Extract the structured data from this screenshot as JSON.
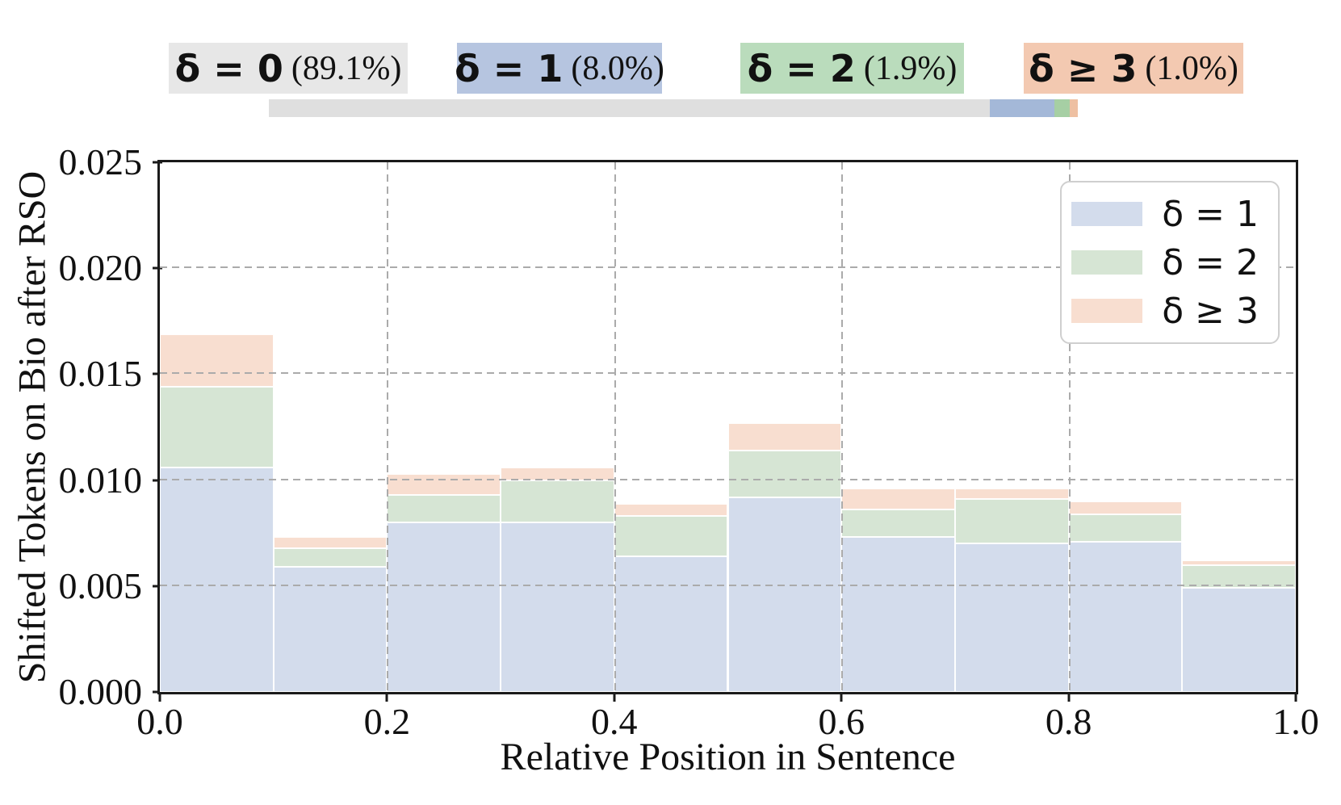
{
  "banner": {
    "items": [
      {
        "delta": "δ = 0",
        "pct": "(89.1%)",
        "share": 89.1,
        "chip_color": "#e7e7e7",
        "bar_color": "#dfdfdf"
      },
      {
        "delta": "δ = 1",
        "pct": "(8.0%)",
        "share": 8.0,
        "chip_color": "#b6c5e0",
        "bar_color": "#a4b8d8"
      },
      {
        "delta": "δ = 2",
        "pct": "(1.9%)",
        "share": 1.9,
        "chip_color": "#badcbc",
        "bar_color": "#a6cfa4"
      },
      {
        "delta": "δ ≥ 3",
        "pct": "(1.0%)",
        "share": 1.0,
        "chip_color": "#f3c9b1",
        "bar_color": "#eec0a2"
      }
    ]
  },
  "chart_data": {
    "type": "bar",
    "stacked": true,
    "title": "",
    "xlabel": "Relative Position in Sentence",
    "ylabel": "Shifted Tokens on Bio after RSO",
    "xlim": [
      0.0,
      1.0
    ],
    "ylim": [
      0.0,
      0.025
    ],
    "x_ticks": [
      "0.0",
      "0.2",
      "0.4",
      "0.6",
      "0.8",
      "1.0"
    ],
    "y_ticks": [
      "0.000",
      "0.005",
      "0.010",
      "0.015",
      "0.020",
      "0.025"
    ],
    "grid": true,
    "bin_edges": [
      0.0,
      0.1,
      0.2,
      0.3,
      0.4,
      0.5,
      0.6,
      0.7,
      0.8,
      0.9,
      1.0
    ],
    "series": [
      {
        "name": "δ = 1",
        "color": "#d3dcec",
        "values": [
          0.0106,
          0.0059,
          0.008,
          0.008,
          0.0064,
          0.0092,
          0.0073,
          0.007,
          0.0071,
          0.0049
        ]
      },
      {
        "name": "δ = 2",
        "color": "#d6e5d4",
        "values": [
          0.0038,
          0.0009,
          0.0013,
          0.002,
          0.0019,
          0.0022,
          0.0013,
          0.0021,
          0.0013,
          0.0011
        ]
      },
      {
        "name": "δ ≥ 3",
        "color": "#f8ded0",
        "values": [
          0.0025,
          0.0005,
          0.001,
          0.0006,
          0.0006,
          0.0013,
          0.001,
          0.0005,
          0.0006,
          0.0002
        ]
      }
    ],
    "stack_tops": [
      0.0169,
      0.0073,
      0.0103,
      0.0106,
      0.0089,
      0.0127,
      0.0096,
      0.0096,
      0.009,
      0.0062
    ],
    "legend": {
      "position": "upper right",
      "entries": [
        "δ = 1",
        "δ = 2",
        "δ ≥ 3"
      ]
    }
  }
}
